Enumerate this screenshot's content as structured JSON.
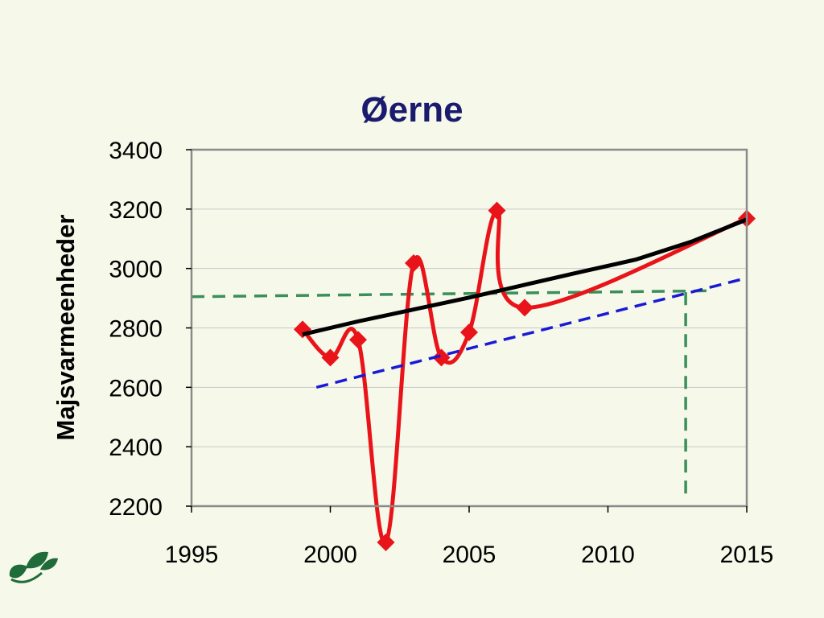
{
  "chart_data": {
    "type": "line",
    "title": "Øerne",
    "xlabel": "",
    "ylabel": "Majsvarmeenheder",
    "xlim": [
      1995,
      2015
    ],
    "ylim": [
      2200,
      3400
    ],
    "x_ticks": [
      "1995",
      "2000",
      "2005",
      "2010",
      "2015"
    ],
    "y_ticks": [
      "2200",
      "2400",
      "2600",
      "2800",
      "3000",
      "3200",
      "3400"
    ],
    "grid": "horizontal",
    "legend": "none",
    "series": [
      {
        "style": "line-with-diamond-markers",
        "color": "#e8141a",
        "smooth": true,
        "x": [
          1999,
          2000,
          2001,
          2002,
          2003,
          2004,
          2005,
          2006,
          2007,
          2015
        ],
        "y": [
          2795,
          2700,
          2760,
          2078,
          3018,
          2700,
          2785,
          3195,
          2868,
          3168
        ]
      },
      {
        "style": "solid-trend-line",
        "color": "#000000",
        "x": [
          1999,
          2001,
          2003,
          2005,
          2007,
          2009,
          2011,
          2013,
          2015
        ],
        "y": [
          2778,
          2822,
          2862,
          2902,
          2945,
          2988,
          3030,
          3090,
          3165
        ]
      },
      {
        "style": "dashed-trend-line",
        "color": "#1a1ad6",
        "x": [
          1999.5,
          2015
        ],
        "y": [
          2600,
          2968
        ]
      }
    ],
    "reference_lines": {
      "style": "dashed",
      "color": "#3a8f5a",
      "horizontal_y": 2905,
      "horizontal_to_y": 2925,
      "vertical_x": 2012.8
    }
  },
  "logo": {
    "name": "leaf-logo",
    "color": "#1f6b3a"
  }
}
